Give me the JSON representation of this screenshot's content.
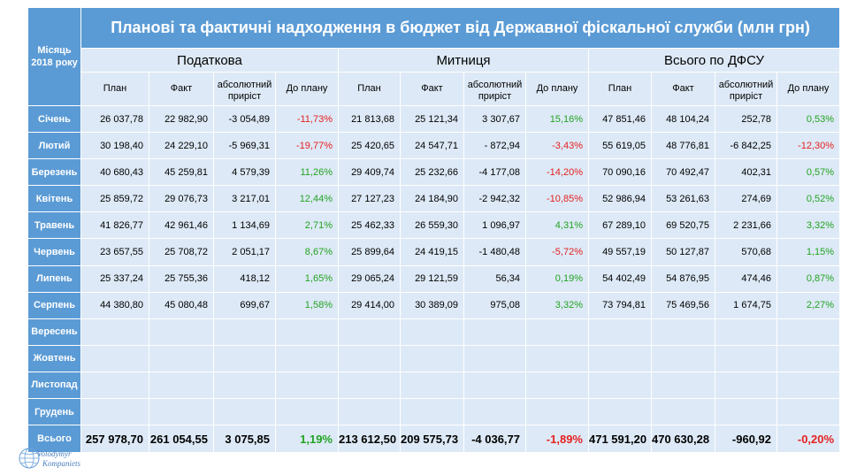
{
  "title": "Планові та фактичні надходження в бюджет від Державної фіскальної служби (млн грн)",
  "month_header": "Місяць 2018 року",
  "groups": [
    "Податкова",
    "Митниця",
    "Всього по ДФСУ"
  ],
  "subheaders": [
    "План",
    "Факт",
    "абсолютний приріст",
    "До плану"
  ],
  "rows": [
    {
      "month": "Січень",
      "v": [
        "26 037,78",
        "22 982,90",
        "-3 054,89",
        "-11,73%",
        "21 813,68",
        "25 121,34",
        "3 307,67",
        "15,16%",
        "47 851,46",
        "48 104,24",
        "252,78",
        "0,53%"
      ]
    },
    {
      "month": "Лютий",
      "v": [
        "30 198,40",
        "24 229,10",
        "-5 969,31",
        "-19,77%",
        "25 420,65",
        "24 547,71",
        "- 872,94",
        "-3,43%",
        "55 619,05",
        "48 776,81",
        "-6 842,25",
        "-12,30%"
      ]
    },
    {
      "month": "Березень",
      "v": [
        "40 680,43",
        "45 259,81",
        "4 579,39",
        "11,26%",
        "29 409,74",
        "25 232,66",
        "-4 177,08",
        "-14,20%",
        "70 090,16",
        "70 492,47",
        "402,31",
        "0,57%"
      ]
    },
    {
      "month": "Квітень",
      "v": [
        "25 859,72",
        "29 076,73",
        "3 217,01",
        "12,44%",
        "27 127,23",
        "24 184,90",
        "-2 942,32",
        "-10,85%",
        "52 986,94",
        "53 261,63",
        "274,69",
        "0,52%"
      ]
    },
    {
      "month": "Травень",
      "v": [
        "41 826,77",
        "42 961,46",
        "1 134,69",
        "2,71%",
        "25 462,33",
        "26 559,30",
        "1 096,97",
        "4,31%",
        "67 289,10",
        "69 520,75",
        "2 231,66",
        "3,32%"
      ]
    },
    {
      "month": "Червень",
      "v": [
        "23 657,55",
        "25 708,72",
        "2 051,17",
        "8,67%",
        "25 899,64",
        "24 419,15",
        "-1 480,48",
        "-5,72%",
        "49 557,19",
        "50 127,87",
        "570,68",
        "1,15%"
      ]
    },
    {
      "month": "Липень",
      "v": [
        "25 337,24",
        "25 755,36",
        "418,12",
        "1,65%",
        "29 065,24",
        "29 121,59",
        "56,34",
        "0,19%",
        "54 402,49",
        "54 876,95",
        "474,46",
        "0,87%"
      ]
    },
    {
      "month": "Серпень",
      "v": [
        "44 380,80",
        "45 080,48",
        "699,67",
        "1,58%",
        "29 414,00",
        "30 389,09",
        "975,08",
        "3,32%",
        "73 794,81",
        "75 469,56",
        "1 674,75",
        "2,27%"
      ]
    },
    {
      "month": "Вересень",
      "v": [
        "",
        "",
        "",
        "",
        "",
        "",
        "",
        "",
        "",
        "",
        "",
        ""
      ]
    },
    {
      "month": "Жовтень",
      "v": [
        "",
        "",
        "",
        "",
        "",
        "",
        "",
        "",
        "",
        "",
        "",
        ""
      ]
    },
    {
      "month": "Листопад",
      "v": [
        "",
        "",
        "",
        "",
        "",
        "",
        "",
        "",
        "",
        "",
        "",
        ""
      ]
    },
    {
      "month": "Грудень",
      "v": [
        "",
        "",
        "",
        "",
        "",
        "",
        "",
        "",
        "",
        "",
        "",
        ""
      ]
    }
  ],
  "total": {
    "month": "Всього",
    "v": [
      "257 978,70",
      "261 054,55",
      "3 075,85",
      "1,19%",
      "213 612,50",
      "209 575,73",
      "-4 036,77",
      "-1,89%",
      "471 591,20",
      "470 630,28",
      "-960,92",
      "-0,20%"
    ]
  },
  "colors": {
    "header": "#5b9bd5",
    "cell": "#dde9f6",
    "positive": "#22a322",
    "negative": "#e52121"
  },
  "logo": {
    "line1": "Volodymyr",
    "line2": "Kompaniets"
  }
}
